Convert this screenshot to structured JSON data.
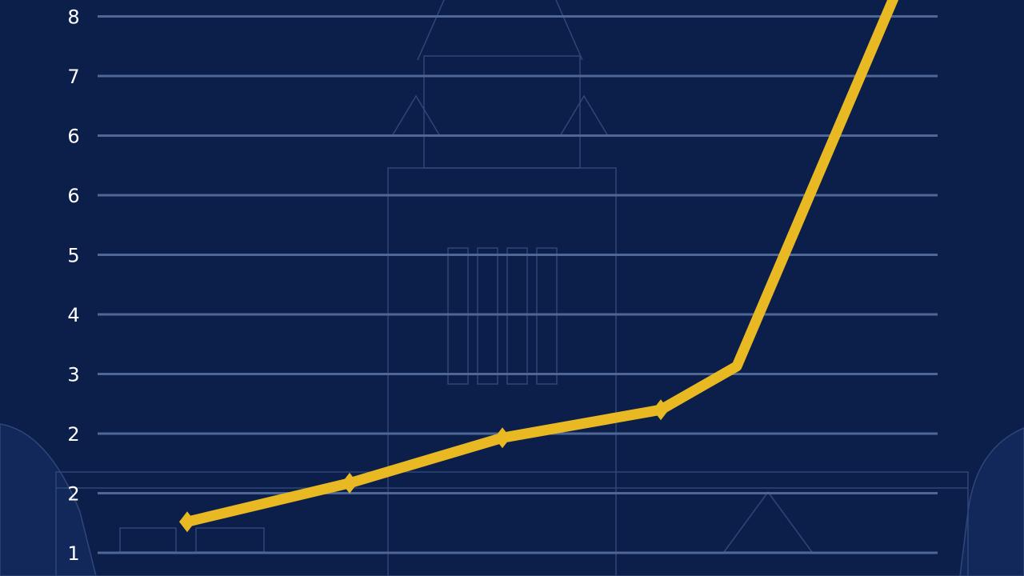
{
  "chart_data": {
    "type": "line",
    "title": "",
    "xlabel": "",
    "ylabel": "",
    "y_tick_labels": [
      "1",
      "2",
      "2",
      "3",
      "4",
      "5",
      "6",
      "6",
      "7",
      "8"
    ],
    "ylim": [
      0.4,
      10.3
    ],
    "grid": "horizontal",
    "legend": "none",
    "series": [
      {
        "color": "#e8b923",
        "x": [
          1,
          2,
          3,
          4,
          5,
          6
        ],
        "y": [
          1.52,
          2.17,
          2.93,
          3.4,
          4.13,
          10.4
        ],
        "markers": [
          true,
          true,
          true,
          true,
          false,
          false
        ]
      }
    ],
    "colors": {
      "background": "#0c1f4b",
      "grid": "#4f6796",
      "line": "#e8b923",
      "background_illustration": "#2c4577"
    }
  }
}
